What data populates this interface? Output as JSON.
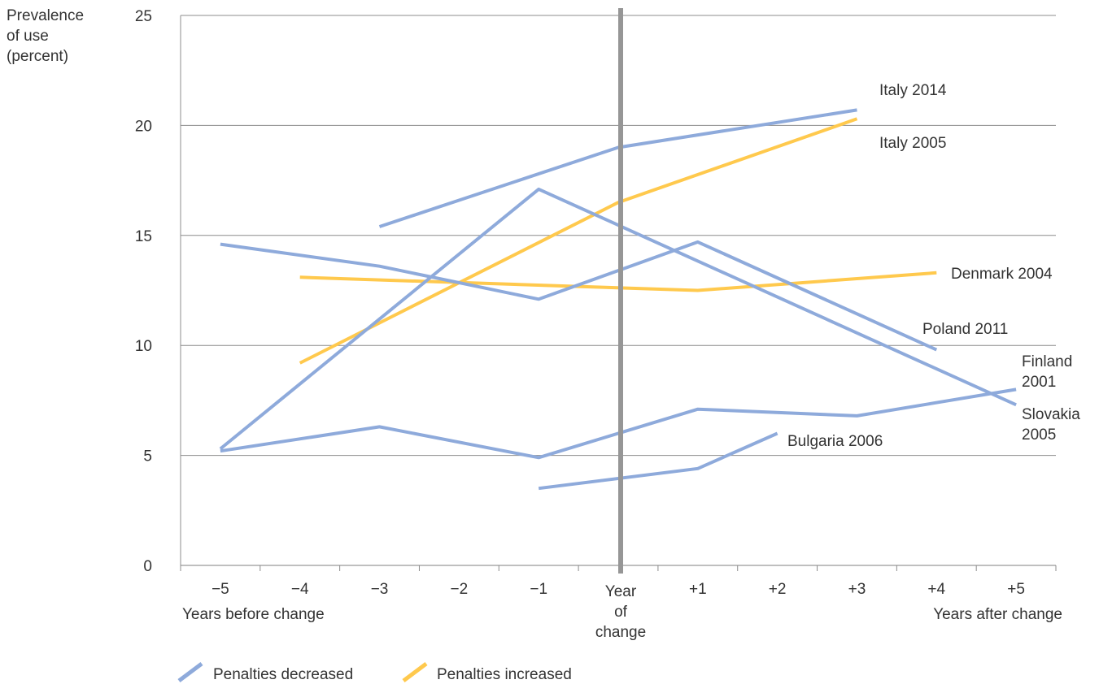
{
  "chart_data": {
    "type": "line",
    "ylabel_lines": [
      "Prevalence",
      "of use",
      "(percent)"
    ],
    "ylim": [
      0,
      25
    ],
    "y_ticks": [
      0,
      5,
      10,
      15,
      20,
      25
    ],
    "x_range": [
      -5.5,
      5.5
    ],
    "x_ticks": [
      {
        "x": -5,
        "label": "−5"
      },
      {
        "x": -4,
        "label": "−4"
      },
      {
        "x": -3,
        "label": "−3"
      },
      {
        "x": -2,
        "label": "−2"
      },
      {
        "x": -1,
        "label": "−1"
      },
      {
        "x": 0,
        "label": ""
      },
      {
        "x": 1,
        "label": "+1"
      },
      {
        "x": 2,
        "label": "+2"
      },
      {
        "x": 3,
        "label": "+3"
      },
      {
        "x": 4,
        "label": "+4"
      },
      {
        "x": 5,
        "label": "+5"
      }
    ],
    "year_of_change_lines": [
      "Year",
      "of",
      "change"
    ],
    "xlabel_before": "Years before change",
    "xlabel_after": "Years after change",
    "grid": "horizontal",
    "vertical_marker_x": 0,
    "groups": [
      {
        "name": "Penalties decreased",
        "color": "#8eaadb"
      },
      {
        "name": "Penalties increased",
        "color": "#ffc94d"
      }
    ],
    "series": [
      {
        "label_lines": [
          "Italy 2014"
        ],
        "group": 0,
        "points": [
          [
            -3,
            15.4
          ],
          [
            0,
            19.0
          ],
          [
            3,
            20.7
          ]
        ]
      },
      {
        "label_lines": [
          "Italy 2005"
        ],
        "group": 1,
        "points": [
          [
            -4,
            9.2
          ],
          [
            0,
            16.5
          ],
          [
            3,
            20.3
          ]
        ]
      },
      {
        "label_lines": [
          "Denmark 2004"
        ],
        "group": 1,
        "points": [
          [
            -4,
            13.1
          ],
          [
            1,
            12.5
          ],
          [
            4,
            13.3
          ]
        ]
      },
      {
        "label_lines": [
          "Poland 2011"
        ],
        "group": 0,
        "points": [
          [
            -5,
            14.6
          ],
          [
            -3,
            13.6
          ],
          [
            -1,
            12.1
          ],
          [
            1,
            14.7
          ],
          [
            4,
            9.8
          ]
        ]
      },
      {
        "label_lines": [
          "Finland",
          "2001"
        ],
        "group": 0,
        "points": [
          [
            -5,
            5.2
          ],
          [
            -3,
            6.3
          ],
          [
            -1,
            4.9
          ],
          [
            1,
            7.1
          ],
          [
            3,
            6.8
          ],
          [
            5,
            8.0
          ]
        ]
      },
      {
        "label_lines": [
          "Slovakia",
          "2005"
        ],
        "group": 0,
        "points": [
          [
            -5,
            5.3
          ],
          [
            -1,
            17.1
          ],
          [
            5,
            7.3
          ]
        ]
      },
      {
        "label_lines": [
          "Bulgaria 2006"
        ],
        "group": 0,
        "points": [
          [
            -1,
            3.5
          ],
          [
            1,
            4.4
          ],
          [
            2,
            6.0
          ]
        ]
      }
    ]
  }
}
